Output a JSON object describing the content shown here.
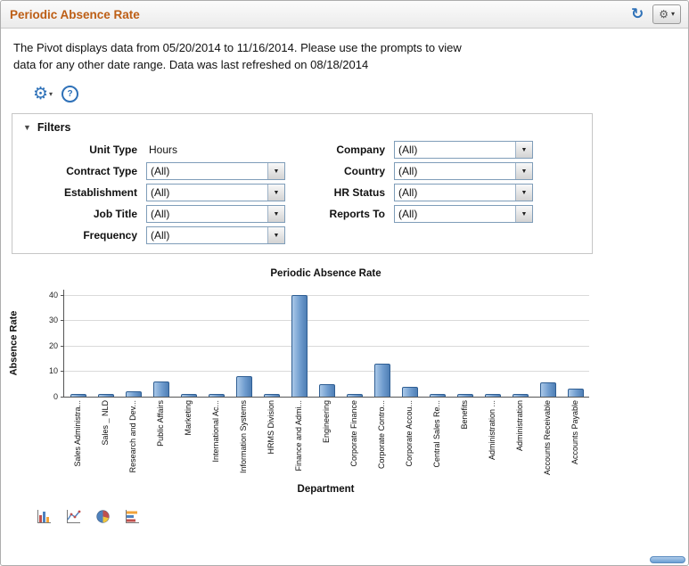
{
  "colors": {
    "accent_blue": "#2e71b8",
    "title_orange": "#bd5e15",
    "bar_fill": "#6f9cce",
    "bar_border": "#2f5e93"
  },
  "icons": {
    "refresh": "↻",
    "gear": "⚙",
    "caret": "▾",
    "help": "?",
    "collapse": "▼",
    "select_arrow": "▼"
  },
  "header": {
    "title": "Periodic Absence Rate"
  },
  "info": {
    "line1": "The Pivot displays data from 05/20/2014 to 11/16/2014. Please use the prompts to view",
    "line2": "data for any other date range. Data was last refreshed on 08/18/2014"
  },
  "filters": {
    "title": "Filters",
    "left": [
      {
        "label": "Unit Type",
        "value": "Hours",
        "control": "text"
      },
      {
        "label": "Contract Type",
        "value": "(All)",
        "control": "select"
      },
      {
        "label": "Establishment",
        "value": "(All)",
        "control": "select"
      },
      {
        "label": "Job Title",
        "value": "(All)",
        "control": "select"
      },
      {
        "label": "Frequency",
        "value": "(All)",
        "control": "select"
      }
    ],
    "right": [
      {
        "label": "Company",
        "value": "(All)",
        "control": "select"
      },
      {
        "label": "Country",
        "value": "(All)",
        "control": "select"
      },
      {
        "label": "HR Status",
        "value": "(All)",
        "control": "select"
      },
      {
        "label": "Reports To",
        "value": "(All)",
        "control": "select"
      }
    ]
  },
  "chart_data": {
    "type": "bar",
    "title": "Periodic Absence Rate",
    "xlabel": "Department",
    "ylabel": "Absence Rate",
    "ylim": [
      0,
      42
    ],
    "yticks": [
      0,
      10,
      20,
      30,
      40
    ],
    "grid": "horizontal",
    "legend": "none",
    "categories": [
      "Sales Administra...",
      "Sales _ NLD",
      "Research and Dev...",
      "Public Affairs",
      "Marketing",
      "International Ac...",
      "Information Systems",
      "HRMS Division",
      "Finance and Admi...",
      "Engineering",
      "Corporate Finance",
      "Corporate Contro...",
      "Corporate Accou...",
      "Central Sales Re...",
      "Benefits",
      "Administration ...",
      "Administration",
      "Accounts Receivable",
      "Accounts Payable"
    ],
    "values": [
      1,
      1,
      2,
      6,
      1,
      1,
      8,
      1,
      40,
      5,
      1,
      13,
      4,
      1,
      1,
      1,
      1,
      5.5,
      3
    ]
  }
}
